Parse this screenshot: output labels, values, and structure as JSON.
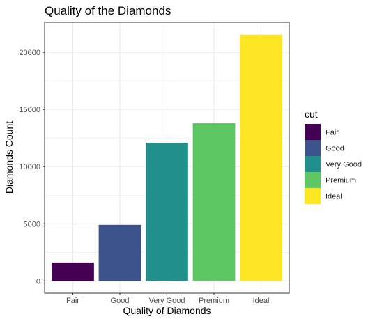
{
  "chart_data": {
    "type": "bar",
    "title": "Quality of the Diamonds",
    "xlabel": "Quality of Diamonds",
    "ylabel": "Diamonds Count",
    "categories": [
      "Fair",
      "Good",
      "Very Good",
      "Premium",
      "Ideal"
    ],
    "values": [
      1610,
      4906,
      12082,
      13791,
      21551
    ],
    "colors": [
      "#440154",
      "#3B528B",
      "#21908C",
      "#5DC863",
      "#FDE725"
    ],
    "yticks": [
      0,
      5000,
      10000,
      15000,
      20000
    ],
    "ylim": [
      -1078,
      22629
    ],
    "grid": true,
    "legend": {
      "title": "cut",
      "position": "right",
      "items": [
        "Fair",
        "Good",
        "Very Good",
        "Premium",
        "Ideal"
      ]
    }
  }
}
